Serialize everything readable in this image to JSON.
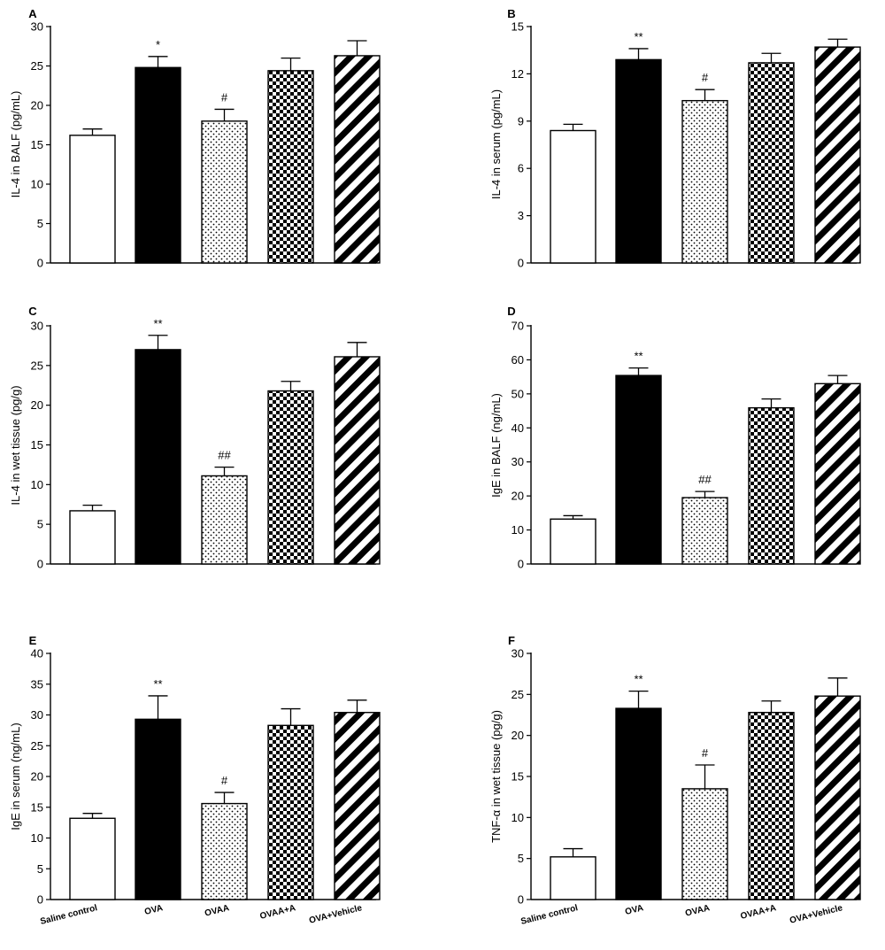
{
  "figure": {
    "categories": [
      "Saline control",
      "OVA",
      "OVAA",
      "OVAA+A",
      "OVA+Vehicle"
    ],
    "patterns": [
      "open",
      "solid",
      "dots",
      "checker",
      "diagonal-stripes"
    ],
    "colors": {
      "bar_edge": "#000000",
      "solid_fill": "#000000",
      "open_fill": "#ffffff"
    }
  },
  "chart_data": [
    {
      "type": "bar",
      "panel": "A",
      "ylabel": "IL-4 in BALF (pg/mL)",
      "ylim": [
        0,
        30
      ],
      "yticks": [
        0,
        5,
        10,
        15,
        20,
        25,
        30
      ],
      "categories": [
        "Saline control",
        "OVA",
        "OVAA",
        "OVAA+A",
        "OVA+Vehicle"
      ],
      "values": [
        16.2,
        24.8,
        18.0,
        24.4,
        26.3
      ],
      "errors": [
        0.8,
        1.4,
        1.5,
        1.6,
        1.9
      ],
      "annotations": [
        "",
        "*",
        "#",
        "",
        ""
      ]
    },
    {
      "type": "bar",
      "panel": "B",
      "ylabel": "IL-4 in serum (pg/mL)",
      "ylim": [
        0,
        15
      ],
      "yticks": [
        0,
        3,
        6,
        9,
        12,
        15
      ],
      "categories": [
        "Saline control",
        "OVA",
        "OVAA",
        "OVAA+A",
        "OVA+Vehicle"
      ],
      "values": [
        8.4,
        12.9,
        10.3,
        12.7,
        13.7
      ],
      "errors": [
        0.4,
        0.7,
        0.7,
        0.6,
        0.5
      ],
      "annotations": [
        "",
        "**",
        "#",
        "",
        ""
      ]
    },
    {
      "type": "bar",
      "panel": "C",
      "ylabel": "IL-4 in wet tissue (pg/g)",
      "ylim": [
        0,
        30
      ],
      "yticks": [
        0,
        5,
        10,
        15,
        20,
        25,
        30
      ],
      "categories": [
        "Saline control",
        "OVA",
        "OVAA",
        "OVAA+A",
        "OVA+Vehicle"
      ],
      "values": [
        6.7,
        27.0,
        11.1,
        21.8,
        26.1
      ],
      "errors": [
        0.7,
        1.8,
        1.1,
        1.2,
        1.8
      ],
      "annotations": [
        "",
        "**",
        "##",
        "",
        ""
      ]
    },
    {
      "type": "bar",
      "panel": "D",
      "ylabel": "IgE in BALF (ng/mL)",
      "ylim": [
        0,
        70
      ],
      "yticks": [
        0,
        10,
        20,
        30,
        40,
        50,
        60,
        70
      ],
      "categories": [
        "Saline control",
        "OVA",
        "OVAA",
        "OVAA+A",
        "OVA+Vehicle"
      ],
      "values": [
        13.2,
        55.4,
        19.5,
        45.9,
        53.0
      ],
      "errors": [
        1.0,
        2.2,
        1.8,
        2.6,
        2.4
      ],
      "annotations": [
        "",
        "**",
        "##",
        "",
        ""
      ]
    },
    {
      "type": "bar",
      "panel": "E",
      "ylabel": "IgE in serum (ng/mL)",
      "ylim": [
        0,
        40
      ],
      "yticks": [
        0,
        5,
        10,
        15,
        20,
        25,
        30,
        35,
        40
      ],
      "categories": [
        "Saline control",
        "OVA",
        "OVAA",
        "OVAA+A",
        "OVA+Vehicle"
      ],
      "values": [
        13.2,
        29.3,
        15.6,
        28.3,
        30.4
      ],
      "errors": [
        0.8,
        3.8,
        1.8,
        2.7,
        2.0
      ],
      "annotations": [
        "",
        "**",
        "#",
        "",
        ""
      ]
    },
    {
      "type": "bar",
      "panel": "F",
      "ylabel": "TNF-α in wet tissue (pg/g)",
      "ylim": [
        0,
        30
      ],
      "yticks": [
        0,
        5,
        10,
        15,
        20,
        25,
        30
      ],
      "categories": [
        "Saline control",
        "OVA",
        "OVAA",
        "OVAA+A",
        "OVA+Vehicle"
      ],
      "values": [
        5.2,
        23.3,
        13.5,
        22.8,
        24.8
      ],
      "errors": [
        1.0,
        2.1,
        2.9,
        1.4,
        2.2
      ],
      "annotations": [
        "",
        "**",
        "#",
        "",
        ""
      ]
    }
  ]
}
